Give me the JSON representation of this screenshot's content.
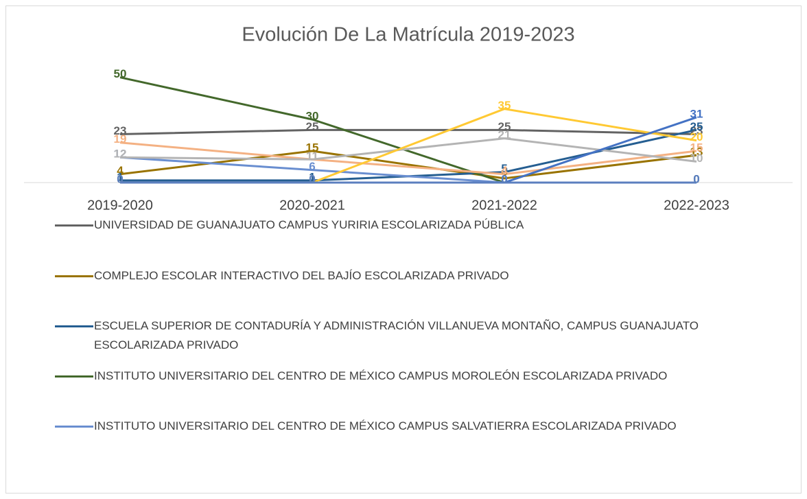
{
  "chart_data": {
    "type": "line",
    "title": "Evolución De La Matrícula 2019-2023",
    "categories": [
      "2019-2020",
      "2020-2021",
      "2021-2022",
      "2022-2023"
    ],
    "ylim": [
      0,
      60
    ],
    "series": [
      {
        "name": "UNIVERSIDAD DE GUANAJUATO CAMPUS YURIRIA ESCOLARIZADA PÚBLICA",
        "color": "#636363",
        "values": [
          23,
          25,
          25,
          23
        ]
      },
      {
        "name": "COMPLEJO ESCOLAR INTERACTIVO DEL BAJÍO ESCOLARIZADA PRIVADO",
        "color": "#997300",
        "values": [
          4,
          15,
          2,
          13
        ]
      },
      {
        "name": "ESCUELA SUPERIOR DE CONTADURÍA Y ADMINISTRACIÓN VILLANUEVA MONTAÑO, CAMPUS GUANAJUATO ESCOLARIZADA PRIVADO",
        "color": "#255e91",
        "values": [
          1,
          1,
          5,
          25
        ]
      },
      {
        "name": "INSTITUTO UNIVERSITARIO DEL CENTRO DE MÉXICO CAMPUS MOROLEÓN ESCOLARIZADA PRIVADO",
        "color": "#43682b",
        "values": [
          50,
          30,
          0,
          0
        ]
      },
      {
        "name": "INSTITUTO UNIVERSITARIO DEL CENTRO DE MÉXICO CAMPUS SALVATIERRA ESCOLARIZADA PRIVADO",
        "color": "#698ed0",
        "values": [
          12,
          6,
          0,
          0
        ]
      },
      {
        "color": "#f4b183",
        "values": [
          19,
          11,
          4,
          15
        ]
      },
      {
        "color": "#b4b4b4",
        "values": [
          12,
          11,
          21,
          10
        ]
      },
      {
        "color": "#ffc933",
        "values": [
          0,
          0,
          35,
          20
        ]
      },
      {
        "color": "#4472c4",
        "values": [
          0,
          0,
          0,
          31
        ]
      },
      {
        "color": "#5b7fbf",
        "values": [
          0,
          0,
          0,
          0
        ]
      }
    ]
  }
}
